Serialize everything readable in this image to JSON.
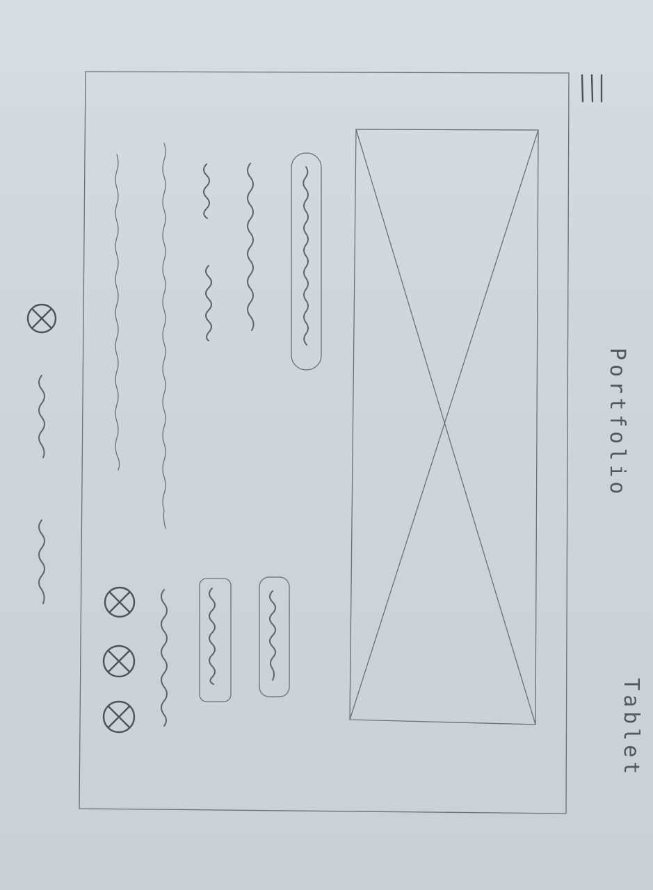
{
  "sheet": {
    "title": "Portfolio",
    "device": "Tablet"
  },
  "icons": {
    "menu": "hamburger-menu-icon",
    "placeholder": "image-placeholder-icon",
    "social": "circle-x-icon"
  }
}
